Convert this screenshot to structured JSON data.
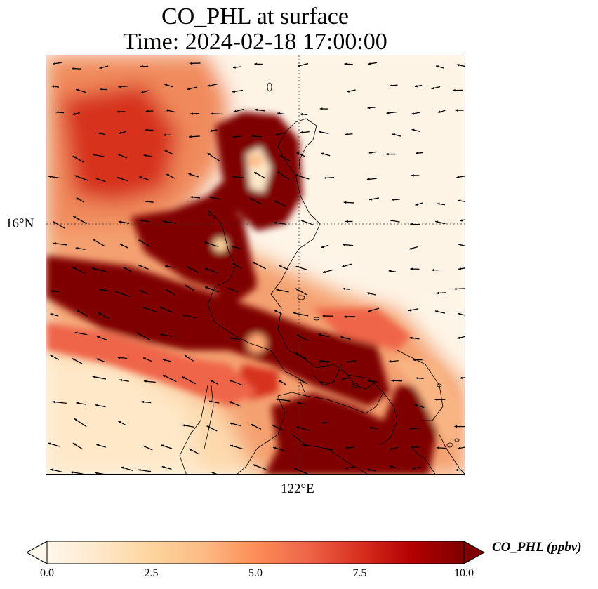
{
  "title": {
    "line1": "CO_PHL at surface",
    "line2": "Time: 2024-02-18 17:00:00"
  },
  "map": {
    "variable": "CO_PHL",
    "level": "surface",
    "colormap": "OrRd",
    "gridlines": "dotted",
    "lat_label": "16°N",
    "lon_label": "122°E",
    "wind_vectors": true,
    "coastlines": true
  },
  "colorbar": {
    "label": "CO_PHL (ppbv)",
    "ticks": [
      "0.0",
      "2.5",
      "5.0",
      "7.5",
      "10.0"
    ],
    "min": 0,
    "max": 10,
    "extend": "both",
    "colors": [
      "#fff7ec",
      "#fee8c8",
      "#fdd49e",
      "#fdbb84",
      "#fc8d59",
      "#ef6548",
      "#d7301f",
      "#b30000",
      "#7f0000"
    ]
  }
}
